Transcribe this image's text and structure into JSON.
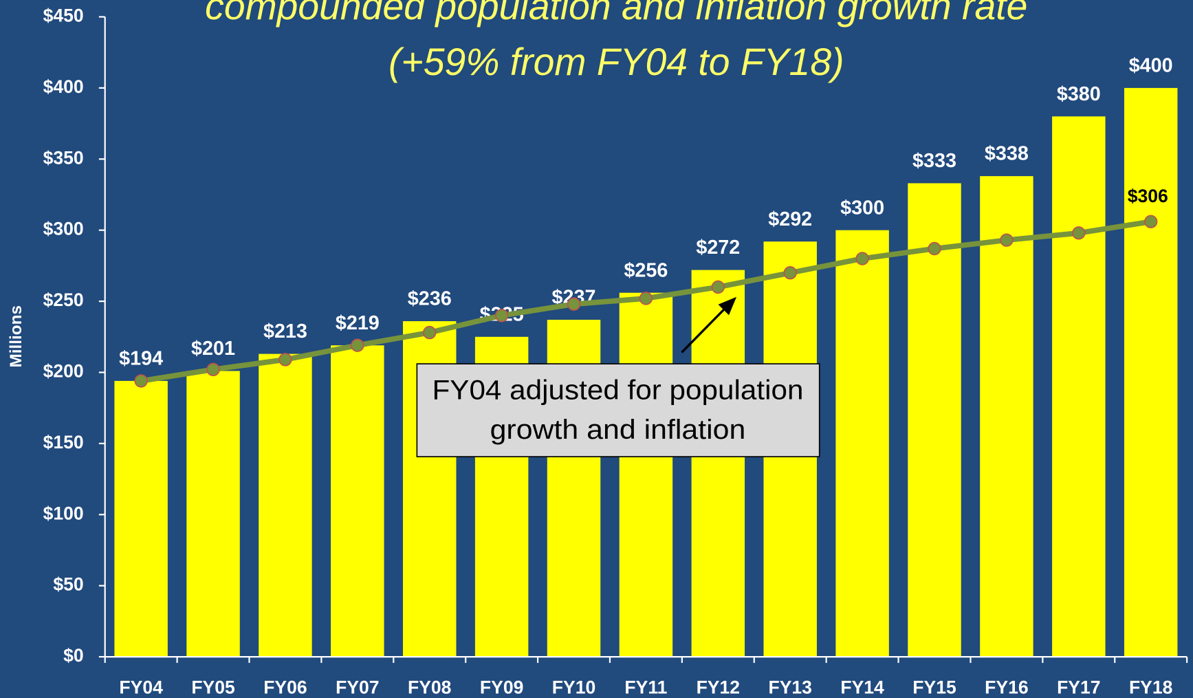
{
  "chart_data": {
    "type": "bar",
    "title": "compounded population and inflation growth rate",
    "subtitle": "(+59% from FY04 to FY18)",
    "y_label": "Millions",
    "annotation": [
      "FY04 adjusted for population",
      "growth and inflation"
    ],
    "categories": [
      "FY04",
      "FY05",
      "FY06",
      "FY07",
      "FY08",
      "FY09",
      "FY10",
      "FY11",
      "FY12",
      "FY13",
      "FY14",
      "FY15",
      "FY16",
      "FY17",
      "FY18"
    ],
    "series": [
      {
        "type": "bar",
        "color": "#ffff00",
        "values": [
          194,
          201,
          213,
          219,
          236,
          225,
          237,
          256,
          272,
          292,
          300,
          333,
          338,
          380,
          400
        ],
        "value_labels": [
          "$194",
          "$201",
          "$213",
          "$219",
          "$236",
          "$225",
          "$237",
          "$256",
          "$272",
          "$292",
          "$300",
          "$333",
          "$338",
          "$380",
          "$400"
        ]
      },
      {
        "type": "line",
        "color": "#77933c",
        "marker_edge": "#c0504d",
        "values": [
          194,
          202,
          209,
          219,
          228,
          240,
          248,
          252,
          260,
          270,
          280,
          287,
          293,
          298,
          306
        ],
        "value_labels": [
          null,
          null,
          null,
          null,
          null,
          null,
          null,
          null,
          null,
          null,
          null,
          null,
          null,
          null,
          "$306"
        ]
      }
    ],
    "ylim": [
      0,
      450
    ],
    "yticks": [
      {
        "value": 0,
        "label": "$0"
      },
      {
        "value": 50,
        "label": "$50"
      },
      {
        "value": 100,
        "label": "$100"
      },
      {
        "value": 150,
        "label": "$150"
      },
      {
        "value": 200,
        "label": "$200"
      },
      {
        "value": 250,
        "label": "$250"
      },
      {
        "value": 300,
        "label": "$300"
      },
      {
        "value": 350,
        "label": "$350"
      },
      {
        "value": 400,
        "label": "$400"
      },
      {
        "value": 450,
        "label": "$450"
      }
    ],
    "grid": false
  }
}
